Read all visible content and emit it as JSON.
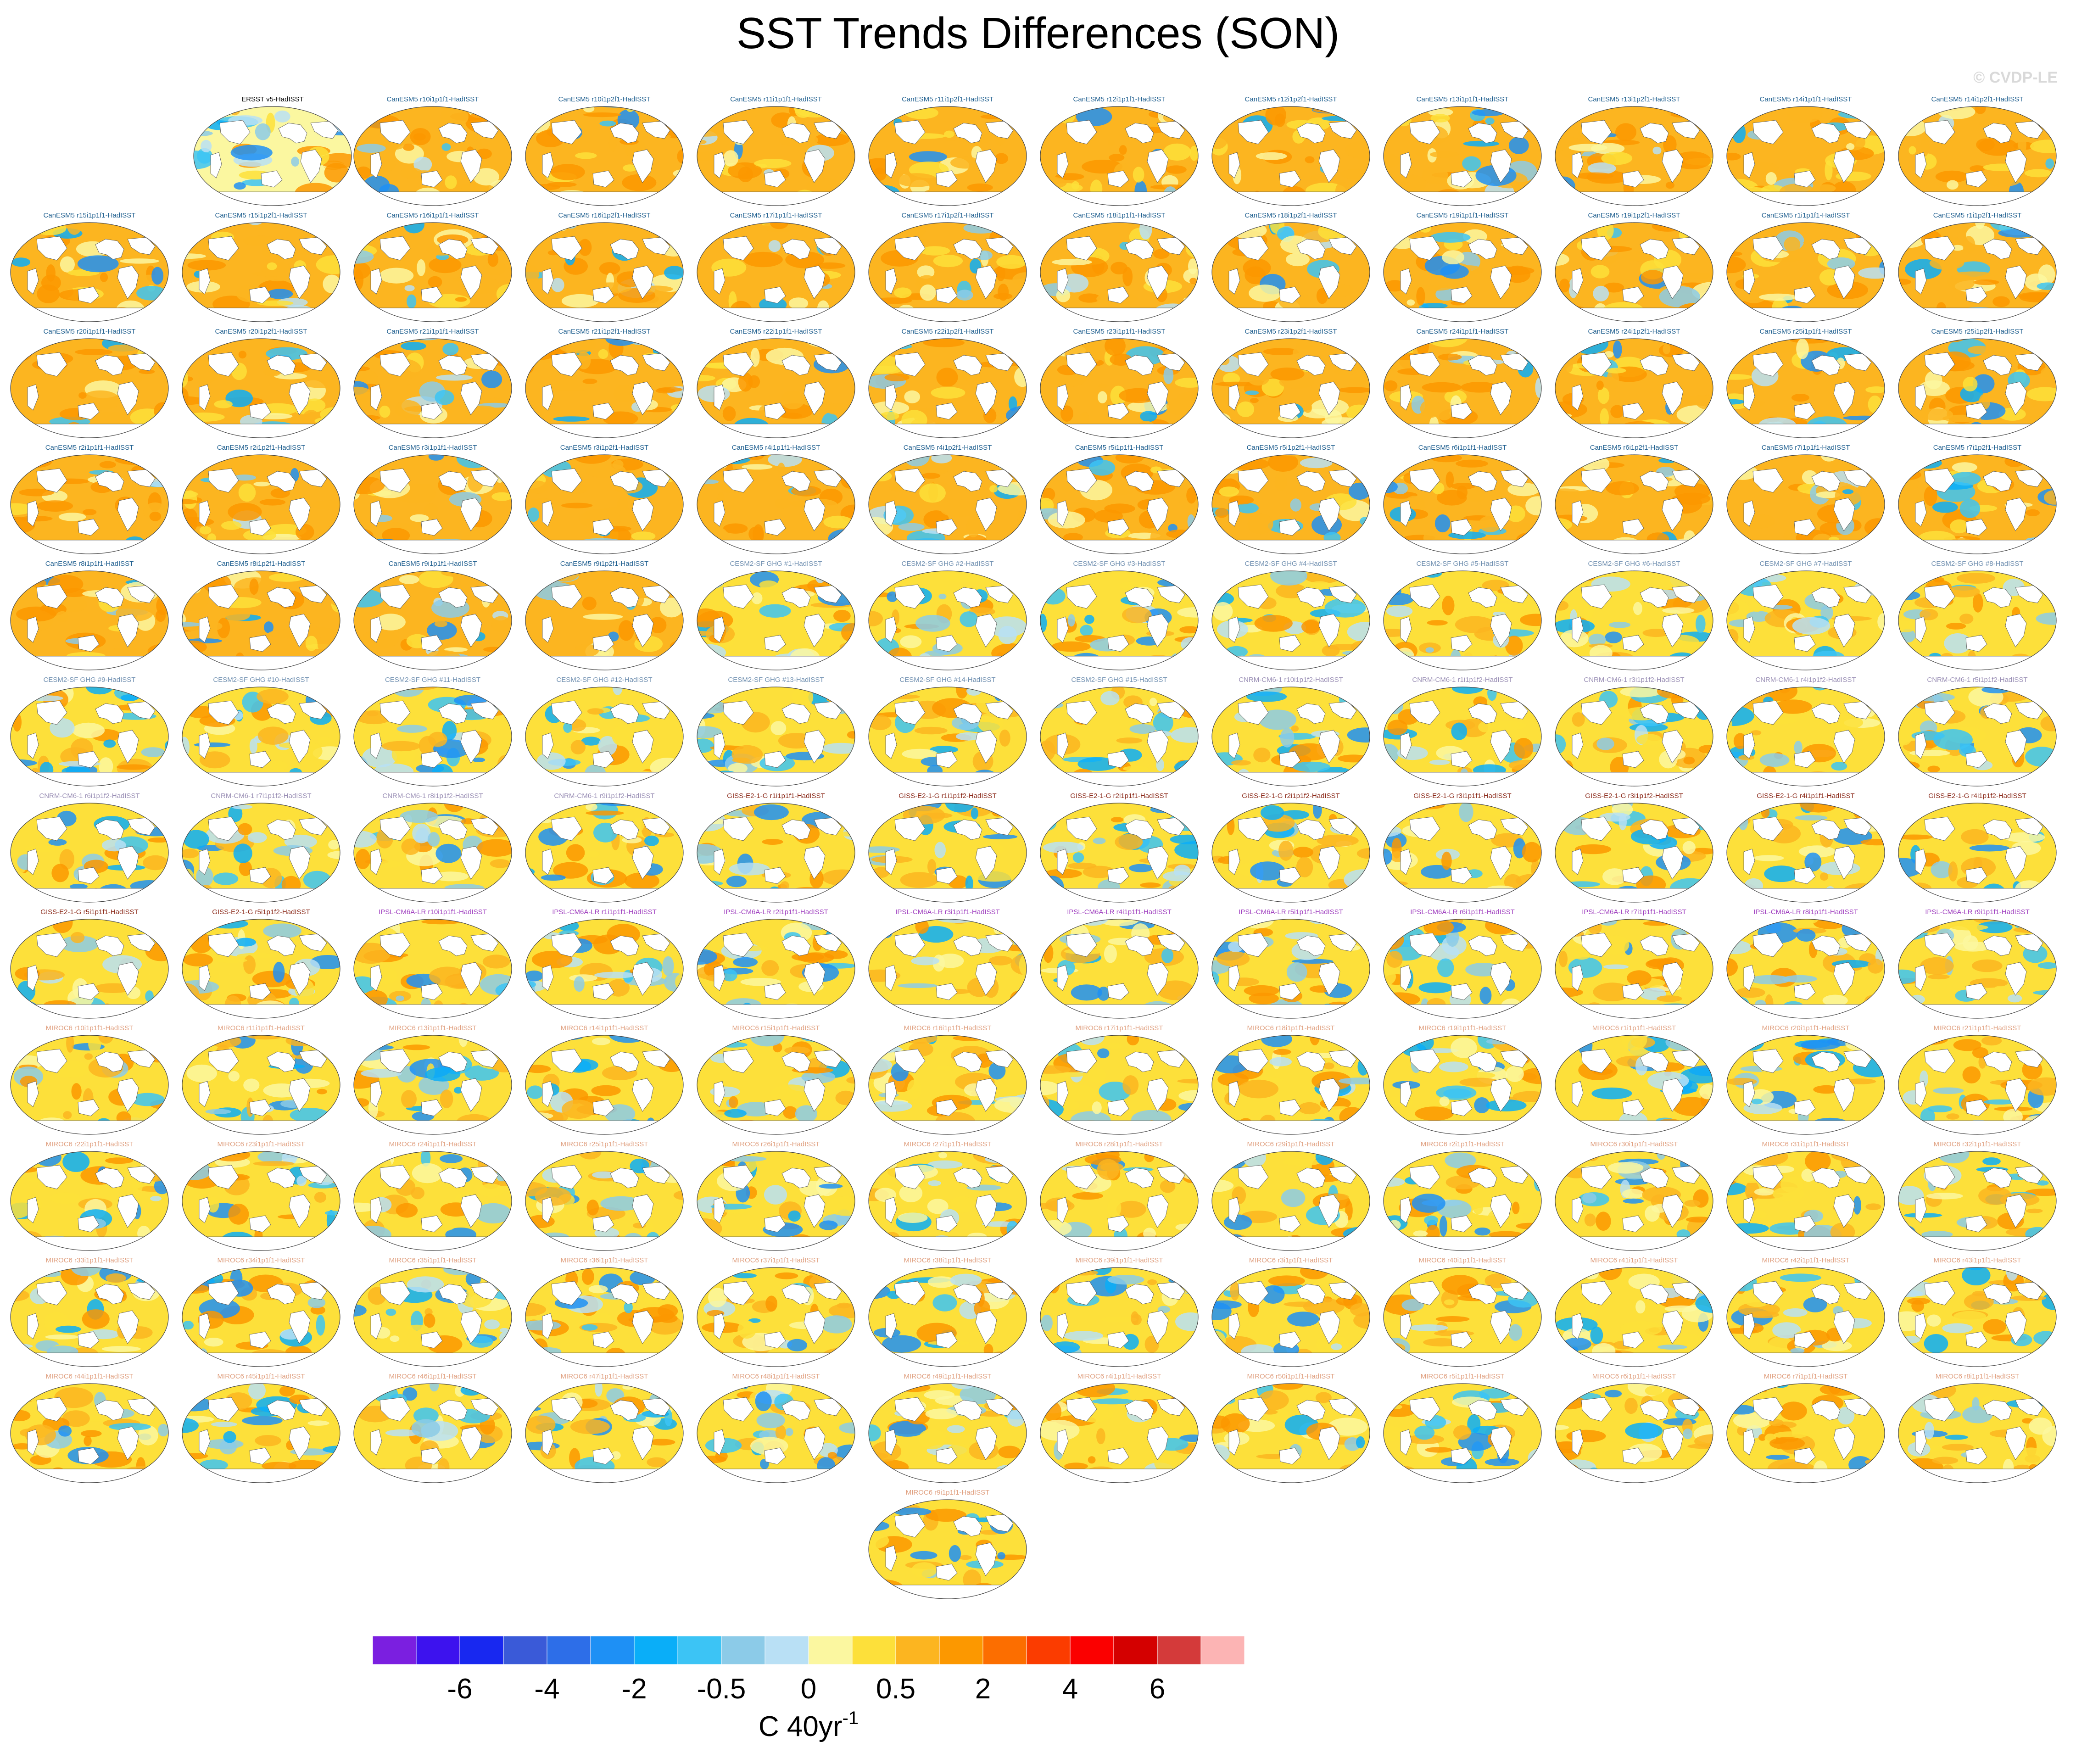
{
  "title": "SST Trends Differences (SON)",
  "watermark": "© CVDP-LE",
  "chart_data": {
    "type": "heatmap",
    "description_of_panels": "map-panels",
    "panels": [
      {
        "label": "ERSST v5-HadISST",
        "group": "obs"
      },
      {
        "label": "CanESM5 r10i1p1f1-HadISST",
        "group": "CanESM5"
      },
      {
        "label": "CanESM5 r10i1p2f1-HadISST",
        "group": "CanESM5"
      },
      {
        "label": "CanESM5 r11i1p1f1-HadISST",
        "group": "CanESM5"
      },
      {
        "label": "CanESM5 r11i1p2f1-HadISST",
        "group": "CanESM5"
      },
      {
        "label": "CanESM5 r12i1p1f1-HadISST",
        "group": "CanESM5"
      },
      {
        "label": "CanESM5 r12i1p2f1-HadISST",
        "group": "CanESM5"
      },
      {
        "label": "CanESM5 r13i1p1f1-HadISST",
        "group": "CanESM5"
      },
      {
        "label": "CanESM5 r13i1p2f1-HadISST",
        "group": "CanESM5"
      },
      {
        "label": "CanESM5 r14i1p1f1-HadISST",
        "group": "CanESM5"
      },
      {
        "label": "CanESM5 r14i1p2f1-HadISST",
        "group": "CanESM5"
      },
      {
        "label": "CanESM5 r15i1p1f1-HadISST",
        "group": "CanESM5"
      },
      {
        "label": "CanESM5 r15i1p2f1-HadISST",
        "group": "CanESM5"
      },
      {
        "label": "CanESM5 r16i1p1f1-HadISST",
        "group": "CanESM5"
      },
      {
        "label": "CanESM5 r16i1p2f1-HadISST",
        "group": "CanESM5"
      },
      {
        "label": "CanESM5 r17i1p1f1-HadISST",
        "group": "CanESM5"
      },
      {
        "label": "CanESM5 r17i1p2f1-HadISST",
        "group": "CanESM5"
      },
      {
        "label": "CanESM5 r18i1p1f1-HadISST",
        "group": "CanESM5"
      },
      {
        "label": "CanESM5 r18i1p2f1-HadISST",
        "group": "CanESM5"
      },
      {
        "label": "CanESM5 r19i1p1f1-HadISST",
        "group": "CanESM5"
      },
      {
        "label": "CanESM5 r19i1p2f1-HadISST",
        "group": "CanESM5"
      },
      {
        "label": "CanESM5 r1i1p1f1-HadISST",
        "group": "CanESM5"
      },
      {
        "label": "CanESM5 r1i1p2f1-HadISST",
        "group": "CanESM5"
      },
      {
        "label": "CanESM5 r20i1p1f1-HadISST",
        "group": "CanESM5"
      },
      {
        "label": "CanESM5 r20i1p2f1-HadISST",
        "group": "CanESM5"
      },
      {
        "label": "CanESM5 r21i1p1f1-HadISST",
        "group": "CanESM5"
      },
      {
        "label": "CanESM5 r21i1p2f1-HadISST",
        "group": "CanESM5"
      },
      {
        "label": "CanESM5 r22i1p1f1-HadISST",
        "group": "CanESM5"
      },
      {
        "label": "CanESM5 r22i1p2f1-HadISST",
        "group": "CanESM5"
      },
      {
        "label": "CanESM5 r23i1p1f1-HadISST",
        "group": "CanESM5"
      },
      {
        "label": "CanESM5 r23i1p2f1-HadISST",
        "group": "CanESM5"
      },
      {
        "label": "CanESM5 r24i1p1f1-HadISST",
        "group": "CanESM5"
      },
      {
        "label": "CanESM5 r24i1p2f1-HadISST",
        "group": "CanESM5"
      },
      {
        "label": "CanESM5 r25i1p1f1-HadISST",
        "group": "CanESM5"
      },
      {
        "label": "CanESM5 r25i1p2f1-HadISST",
        "group": "CanESM5"
      },
      {
        "label": "CanESM5 r2i1p1f1-HadISST",
        "group": "CanESM5"
      },
      {
        "label": "CanESM5 r2i1p2f1-HadISST",
        "group": "CanESM5"
      },
      {
        "label": "CanESM5 r3i1p1f1-HadISST",
        "group": "CanESM5"
      },
      {
        "label": "CanESM5 r3i1p2f1-HadISST",
        "group": "CanESM5"
      },
      {
        "label": "CanESM5 r4i1p1f1-HadISST",
        "group": "CanESM5"
      },
      {
        "label": "CanESM5 r4i1p2f1-HadISST",
        "group": "CanESM5"
      },
      {
        "label": "CanESM5 r5i1p1f1-HadISST",
        "group": "CanESM5"
      },
      {
        "label": "CanESM5 r5i1p2f1-HadISST",
        "group": "CanESM5"
      },
      {
        "label": "CanESM5 r6i1p1f1-HadISST",
        "group": "CanESM5"
      },
      {
        "label": "CanESM5 r6i1p2f1-HadISST",
        "group": "CanESM5"
      },
      {
        "label": "CanESM5 r7i1p1f1-HadISST",
        "group": "CanESM5"
      },
      {
        "label": "CanESM5 r7i1p2f1-HadISST",
        "group": "CanESM5"
      },
      {
        "label": "CanESM5 r8i1p1f1-HadISST",
        "group": "CanESM5"
      },
      {
        "label": "CanESM5 r8i1p2f1-HadISST",
        "group": "CanESM5"
      },
      {
        "label": "CanESM5 r9i1p1f1-HadISST",
        "group": "CanESM5"
      },
      {
        "label": "CanESM5 r9i1p2f1-HadISST",
        "group": "CanESM5"
      },
      {
        "label": "CESM2-SF GHG #1-HadISST",
        "group": "CESM2"
      },
      {
        "label": "CESM2-SF GHG #2-HadISST",
        "group": "CESM2"
      },
      {
        "label": "CESM2-SF GHG #3-HadISST",
        "group": "CESM2"
      },
      {
        "label": "CESM2-SF GHG #4-HadISST",
        "group": "CESM2"
      },
      {
        "label": "CESM2-SF GHG #5-HadISST",
        "group": "CESM2"
      },
      {
        "label": "CESM2-SF GHG #6-HadISST",
        "group": "CESM2"
      },
      {
        "label": "CESM2-SF GHG #7-HadISST",
        "group": "CESM2"
      },
      {
        "label": "CESM2-SF GHG #8-HadISST",
        "group": "CESM2"
      },
      {
        "label": "CESM2-SF GHG #9-HadISST",
        "group": "CESM2"
      },
      {
        "label": "CESM2-SF GHG #10-HadISST",
        "group": "CESM2"
      },
      {
        "label": "CESM2-SF GHG #11-HadISST",
        "group": "CESM2"
      },
      {
        "label": "CESM2-SF GHG #12-HadISST",
        "group": "CESM2"
      },
      {
        "label": "CESM2-SF GHG #13-HadISST",
        "group": "CESM2"
      },
      {
        "label": "CESM2-SF GHG #14-HadISST",
        "group": "CESM2"
      },
      {
        "label": "CESM2-SF GHG #15-HadISST",
        "group": "CESM2"
      },
      {
        "label": "CNRM-CM6-1 r10i1p1f2-HadISST",
        "group": "CNRM"
      },
      {
        "label": "CNRM-CM6-1 r1i1p1f2-HadISST",
        "group": "CNRM"
      },
      {
        "label": "CNRM-CM6-1 r3i1p1f2-HadISST",
        "group": "CNRM"
      },
      {
        "label": "CNRM-CM6-1 r4i1p1f2-HadISST",
        "group": "CNRM"
      },
      {
        "label": "CNRM-CM6-1 r5i1p1f2-HadISST",
        "group": "CNRM"
      },
      {
        "label": "CNRM-CM6-1 r6i1p1f2-HadISST",
        "group": "CNRM"
      },
      {
        "label": "CNRM-CM6-1 r7i1p1f2-HadISST",
        "group": "CNRM"
      },
      {
        "label": "CNRM-CM6-1 r8i1p1f2-HadISST",
        "group": "CNRM"
      },
      {
        "label": "CNRM-CM6-1 r9i1p1f2-HadISST",
        "group": "CNRM"
      },
      {
        "label": "GISS-E2-1-G r1i1p1f1-HadISST",
        "group": "GISS"
      },
      {
        "label": "GISS-E2-1-G r1i1p1f2-HadISST",
        "group": "GISS"
      },
      {
        "label": "GISS-E2-1-G r2i1p1f1-HadISST",
        "group": "GISS"
      },
      {
        "label": "GISS-E2-1-G r2i1p1f2-HadISST",
        "group": "GISS"
      },
      {
        "label": "GISS-E2-1-G r3i1p1f1-HadISST",
        "group": "GISS"
      },
      {
        "label": "GISS-E2-1-G r3i1p1f2-HadISST",
        "group": "GISS"
      },
      {
        "label": "GISS-E2-1-G r4i1p1f1-HadISST",
        "group": "GISS"
      },
      {
        "label": "GISS-E2-1-G r4i1p1f2-HadISST",
        "group": "GISS"
      },
      {
        "label": "GISS-E2-1-G r5i1p1f1-HadISST",
        "group": "GISS"
      },
      {
        "label": "GISS-E2-1-G r5i1p1f2-HadISST",
        "group": "GISS"
      },
      {
        "label": "IPSL-CM6A-LR r10i1p1f1-HadISST",
        "group": "IPSL"
      },
      {
        "label": "IPSL-CM6A-LR r1i1p1f1-HadISST",
        "group": "IPSL"
      },
      {
        "label": "IPSL-CM6A-LR r2i1p1f1-HadISST",
        "group": "IPSL"
      },
      {
        "label": "IPSL-CM6A-LR r3i1p1f1-HadISST",
        "group": "IPSL"
      },
      {
        "label": "IPSL-CM6A-LR r4i1p1f1-HadISST",
        "group": "IPSL"
      },
      {
        "label": "IPSL-CM6A-LR r5i1p1f1-HadISST",
        "group": "IPSL"
      },
      {
        "label": "IPSL-CM6A-LR r6i1p1f1-HadISST",
        "group": "IPSL"
      },
      {
        "label": "IPSL-CM6A-LR r7i1p1f1-HadISST",
        "group": "IPSL"
      },
      {
        "label": "IPSL-CM6A-LR r8i1p1f1-HadISST",
        "group": "IPSL"
      },
      {
        "label": "IPSL-CM6A-LR r9i1p1f1-HadISST",
        "group": "IPSL"
      },
      {
        "label": "MIROC6 r10i1p1f1-HadISST",
        "group": "MIROC6"
      },
      {
        "label": "MIROC6 r11i1p1f1-HadISST",
        "group": "MIROC6"
      },
      {
        "label": "MIROC6 r13i1p1f1-HadISST",
        "group": "MIROC6"
      },
      {
        "label": "MIROC6 r14i1p1f1-HadISST",
        "group": "MIROC6"
      },
      {
        "label": "MIROC6 r15i1p1f1-HadISST",
        "group": "MIROC6"
      },
      {
        "label": "MIROC6 r16i1p1f1-HadISST",
        "group": "MIROC6"
      },
      {
        "label": "MIROC6 r17i1p1f1-HadISST",
        "group": "MIROC6"
      },
      {
        "label": "MIROC6 r18i1p1f1-HadISST",
        "group": "MIROC6"
      },
      {
        "label": "MIROC6 r19i1p1f1-HadISST",
        "group": "MIROC6"
      },
      {
        "label": "MIROC6 r1i1p1f1-HadISST",
        "group": "MIROC6"
      },
      {
        "label": "MIROC6 r20i1p1f1-HadISST",
        "group": "MIROC6"
      },
      {
        "label": "MIROC6 r21i1p1f1-HadISST",
        "group": "MIROC6"
      },
      {
        "label": "MIROC6 r22i1p1f1-HadISST",
        "group": "MIROC6"
      },
      {
        "label": "MIROC6 r23i1p1f1-HadISST",
        "group": "MIROC6"
      },
      {
        "label": "MIROC6 r24i1p1f1-HadISST",
        "group": "MIROC6"
      },
      {
        "label": "MIROC6 r25i1p1f1-HadISST",
        "group": "MIROC6"
      },
      {
        "label": "MIROC6 r26i1p1f1-HadISST",
        "group": "MIROC6"
      },
      {
        "label": "MIROC6 r27i1p1f1-HadISST",
        "group": "MIROC6"
      },
      {
        "label": "MIROC6 r28i1p1f1-HadISST",
        "group": "MIROC6"
      },
      {
        "label": "MIROC6 r29i1p1f1-HadISST",
        "group": "MIROC6"
      },
      {
        "label": "MIROC6 r2i1p1f1-HadISST",
        "group": "MIROC6"
      },
      {
        "label": "MIROC6 r30i1p1f1-HadISST",
        "group": "MIROC6"
      },
      {
        "label": "MIROC6 r31i1p1f1-HadISST",
        "group": "MIROC6"
      },
      {
        "label": "MIROC6 r32i1p1f1-HadISST",
        "group": "MIROC6"
      },
      {
        "label": "MIROC6 r33i1p1f1-HadISST",
        "group": "MIROC6"
      },
      {
        "label": "MIROC6 r34i1p1f1-HadISST",
        "group": "MIROC6"
      },
      {
        "label": "MIROC6 r35i1p1f1-HadISST",
        "group": "MIROC6"
      },
      {
        "label": "MIROC6 r36i1p1f1-HadISST",
        "group": "MIROC6"
      },
      {
        "label": "MIROC6 r37i1p1f1-HadISST",
        "group": "MIROC6"
      },
      {
        "label": "MIROC6 r38i1p1f1-HadISST",
        "group": "MIROC6"
      },
      {
        "label": "MIROC6 r39i1p1f1-HadISST",
        "group": "MIROC6"
      },
      {
        "label": "MIROC6 r3i1p1f1-HadISST",
        "group": "MIROC6"
      },
      {
        "label": "MIROC6 r40i1p1f1-HadISST",
        "group": "MIROC6"
      },
      {
        "label": "MIROC6 r41i1p1f1-HadISST",
        "group": "MIROC6"
      },
      {
        "label": "MIROC6 r42i1p1f1-HadISST",
        "group": "MIROC6"
      },
      {
        "label": "MIROC6 r43i1p1f1-HadISST",
        "group": "MIROC6"
      },
      {
        "label": "MIROC6 r44i1p1f1-HadISST",
        "group": "MIROC6"
      },
      {
        "label": "MIROC6 r45i1p1f1-HadISST",
        "group": "MIROC6"
      },
      {
        "label": "MIROC6 r46i1p1f1-HadISST",
        "group": "MIROC6"
      },
      {
        "label": "MIROC6 r47i1p1f1-HadISST",
        "group": "MIROC6"
      },
      {
        "label": "MIROC6 r48i1p1f1-HadISST",
        "group": "MIROC6"
      },
      {
        "label": "MIROC6 r49i1p1f1-HadISST",
        "group": "MIROC6"
      },
      {
        "label": "MIROC6 r4i1p1f1-HadISST",
        "group": "MIROC6"
      },
      {
        "label": "MIROC6 r50i1p1f1-HadISST",
        "group": "MIROC6"
      },
      {
        "label": "MIROC6 r5i1p1f1-HadISST",
        "group": "MIROC6"
      },
      {
        "label": "MIROC6 r6i1p1f1-HadISST",
        "group": "MIROC6"
      },
      {
        "label": "MIROC6 r7i1p1f1-HadISST",
        "group": "MIROC6"
      },
      {
        "label": "MIROC6 r8i1p1f1-HadISST",
        "group": "MIROC6"
      },
      {
        "label": "MIROC6 r9i1p1f1-HadISST",
        "group": "MIROC6"
      }
    ],
    "group_colors": {
      "obs": "#000000",
      "CanESM5": "#1f5f8f",
      "CESM2": "#6f8fb0",
      "CNRM": "#9a8fb5",
      "GISS": "#8b2a1a",
      "IPSL": "#a040c0",
      "MIROC6": "#e0a080"
    },
    "colorbar": {
      "levels": [
        "-6",
        "-4",
        "-2",
        "-0.5",
        "0",
        "0.5",
        "2",
        "4",
        "6"
      ],
      "colors": [
        "#7b1fe0",
        "#3d12ee",
        "#1828f0",
        "#3a5ad8",
        "#2d6ee8",
        "#1e90f5",
        "#0aaef8",
        "#3cc4f5",
        "#8ccbe8",
        "#b9e0f5",
        "#fbf7a0",
        "#fde03a",
        "#fcb520",
        "#fc9800",
        "#fc6e00",
        "#fb3c00",
        "#fb0000",
        "#d40000",
        "#d43a3a",
        "#fcb4b4"
      ],
      "unit_main": "C 40yr",
      "unit_sup": "-1"
    }
  }
}
